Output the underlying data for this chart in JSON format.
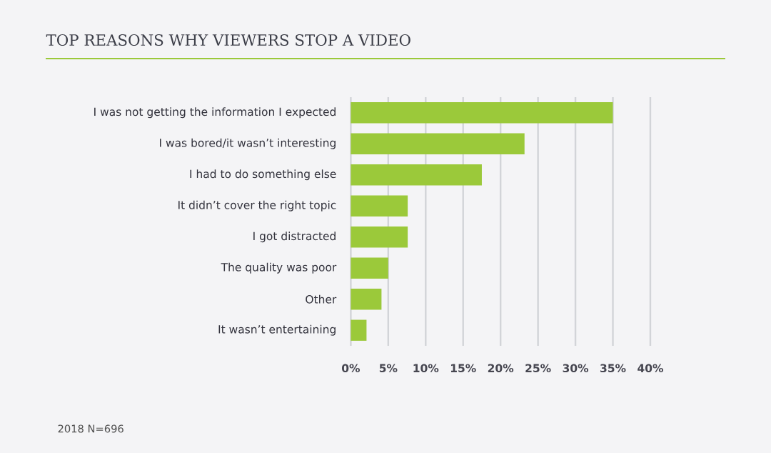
{
  "chart_data": {
    "type": "bar",
    "orientation": "horizontal",
    "title": "TOP REASONS WHY VIEWERS STOP A VIDEO",
    "categories": [
      "I was not getting the information I expected",
      "I was bored/it wasn’t interesting",
      "I had to do something else",
      "It didn’t cover the right topic",
      "I got distracted",
      "The quality was poor",
      "Other",
      "It wasn’t entertaining"
    ],
    "values": [
      35,
      23.2,
      17.5,
      7.6,
      7.6,
      5.0,
      4.1,
      2.1
    ],
    "color": "#9bc93a",
    "xlim": [
      0,
      40
    ],
    "xticks": [
      {
        "value": 0,
        "label": "0%"
      },
      {
        "value": 5,
        "label": "5%"
      },
      {
        "value": 10,
        "label": "10%"
      },
      {
        "value": 15,
        "label": "15%"
      },
      {
        "value": 20,
        "label": "20%"
      },
      {
        "value": 25,
        "label": "25%"
      },
      {
        "value": 30,
        "label": "30%"
      },
      {
        "value": 35,
        "label": "35%"
      },
      {
        "value": 40,
        "label": "40%"
      }
    ],
    "grid": "x",
    "annotations": [
      "2018 N=696"
    ]
  }
}
